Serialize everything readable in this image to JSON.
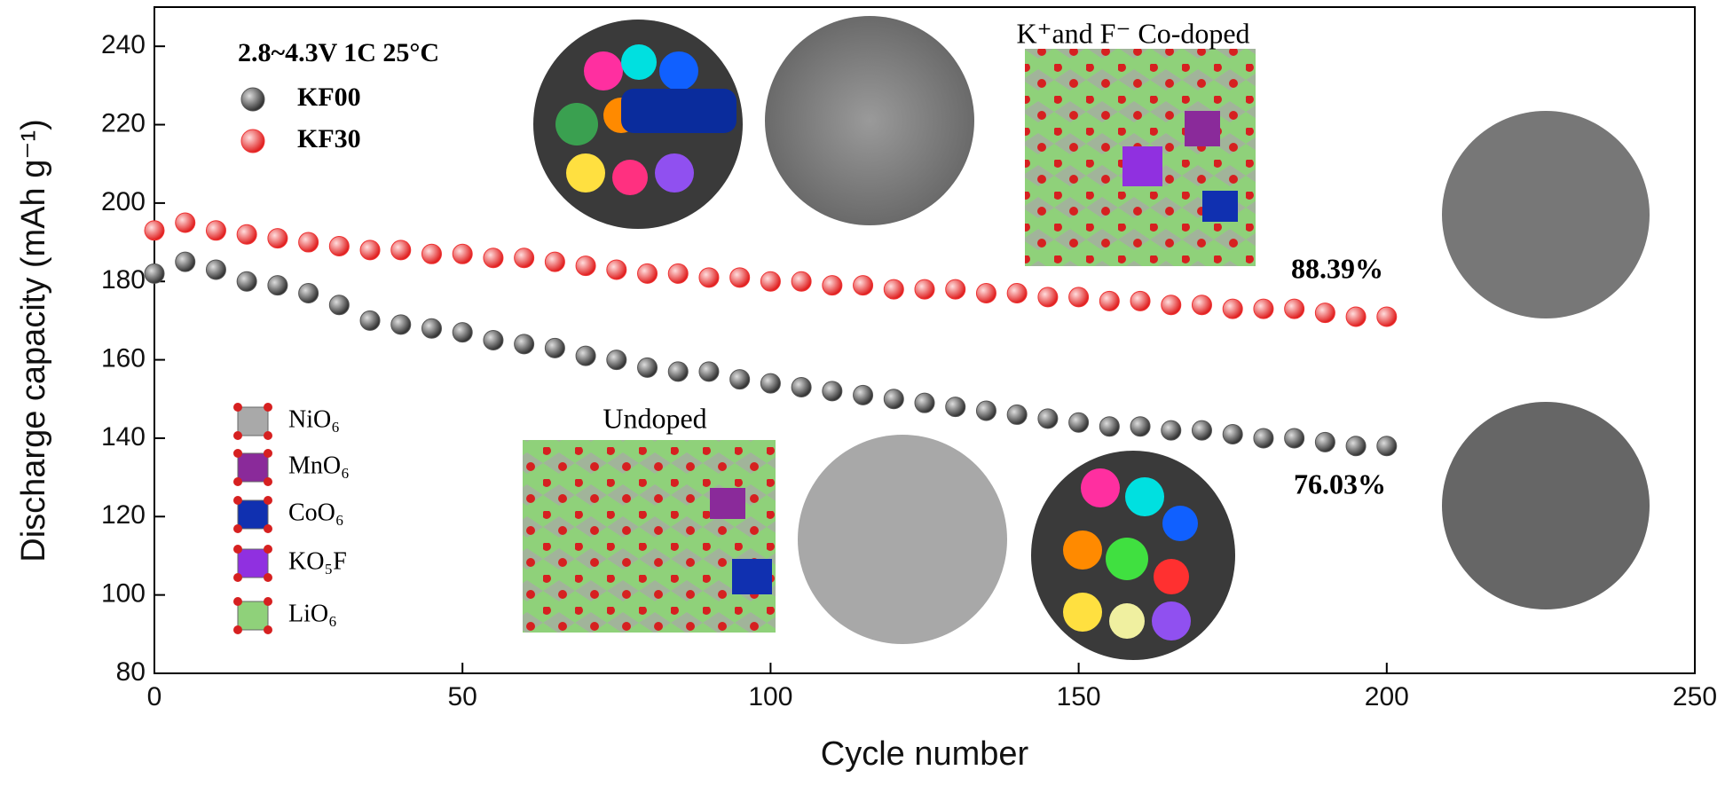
{
  "chart_data": {
    "type": "scatter",
    "xlabel": "Cycle number",
    "ylabel": "Discharge capacity (mAh g⁻¹)",
    "xlim": [
      0,
      250
    ],
    "xticks": [
      0,
      50,
      100,
      150,
      200,
      250
    ],
    "ylim": [
      80,
      250
    ],
    "yticks": [
      80,
      100,
      120,
      140,
      160,
      180,
      200,
      220,
      240
    ],
    "condition": "2.8~4.3V 1C 25°C",
    "x": [
      0,
      5,
      10,
      15,
      20,
      25,
      30,
      35,
      40,
      45,
      50,
      55,
      60,
      65,
      70,
      75,
      80,
      85,
      90,
      95,
      100,
      105,
      110,
      115,
      120,
      125,
      130,
      135,
      140,
      145,
      150,
      155,
      160,
      165,
      170,
      175,
      180,
      185,
      190,
      195,
      200
    ],
    "series": [
      {
        "name": "KF00",
        "color": "#555555",
        "values": [
          182,
          185,
          183,
          180,
          179,
          177,
          174,
          170,
          169,
          168,
          167,
          165,
          164,
          163,
          161,
          160,
          158,
          157,
          157,
          155,
          154,
          153,
          152,
          151,
          150,
          149,
          148,
          147,
          146,
          145,
          144,
          143,
          143,
          142,
          142,
          141,
          140,
          140,
          139,
          138,
          138
        ]
      },
      {
        "name": "KF30",
        "color": "#ee3333",
        "values": [
          193,
          195,
          193,
          192,
          191,
          190,
          189,
          188,
          188,
          187,
          187,
          186,
          186,
          185,
          184,
          183,
          182,
          182,
          181,
          181,
          180,
          180,
          179,
          179,
          178,
          178,
          178,
          177,
          177,
          176,
          176,
          175,
          175,
          174,
          174,
          173,
          173,
          173,
          172,
          171,
          171
        ]
      }
    ],
    "annotations": [
      "K⁺and F⁻ Co-doped",
      "Undoped",
      "88.39%",
      "76.03%"
    ],
    "structure_legend": [
      "NiO₆",
      "MnO₆",
      "CoO₆",
      "KO₅F",
      "LiO₆"
    ]
  }
}
